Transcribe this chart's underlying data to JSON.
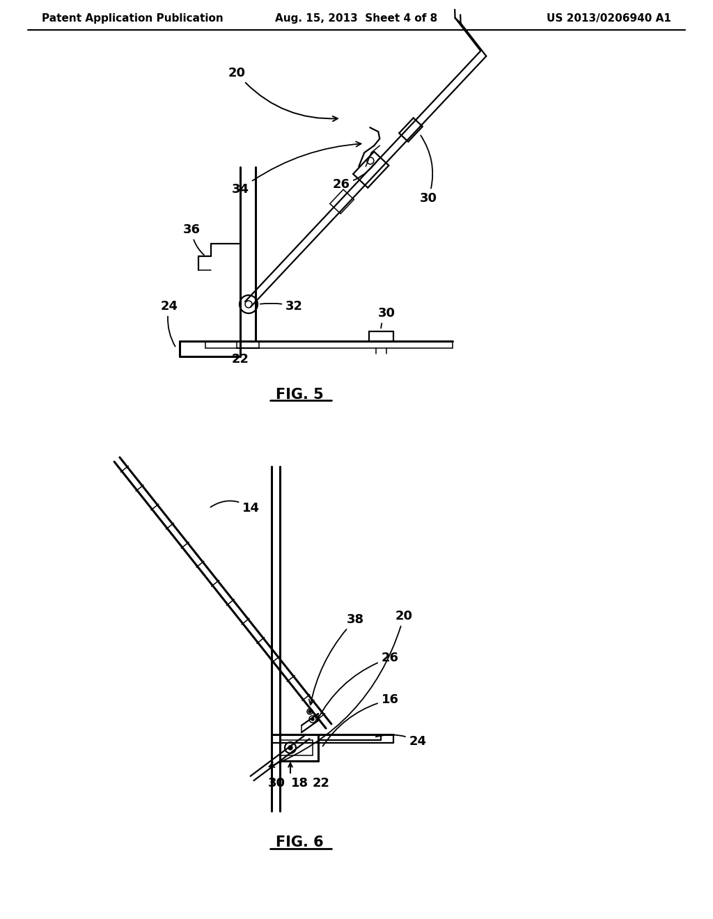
{
  "bg_color": "#ffffff",
  "line_color": "#000000",
  "header_left": "Patent Application Publication",
  "header_mid": "Aug. 15, 2013  Sheet 4 of 8",
  "header_right": "US 2013/0206940 A1",
  "fig5_label": "FIG. 5",
  "fig6_label": "FIG. 6"
}
